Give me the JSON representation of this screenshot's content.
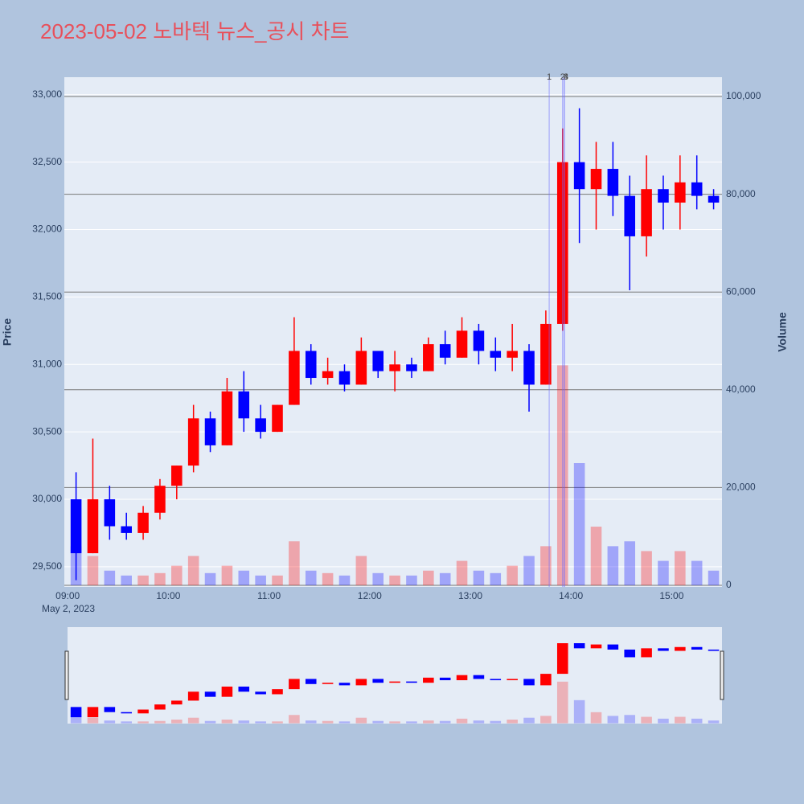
{
  "chart_data": {
    "type": "candlestick",
    "title": "2023-05-02 노바텍 뉴스_공시 차트",
    "x": [
      "09:00",
      "09:10",
      "09:20",
      "09:30",
      "09:40",
      "09:50",
      "10:00",
      "10:10",
      "10:20",
      "10:30",
      "10:40",
      "10:50",
      "11:00",
      "11:10",
      "11:20",
      "11:30",
      "11:40",
      "11:50",
      "12:00",
      "12:10",
      "12:20",
      "12:30",
      "12:40",
      "12:50",
      "13:00",
      "13:10",
      "13:20",
      "13:30",
      "13:40",
      "13:50",
      "14:00",
      "14:10",
      "14:20",
      "14:30",
      "14:40",
      "14:50",
      "15:00",
      "15:10",
      "15:20"
    ],
    "open": [
      30000,
      29600,
      30000,
      29800,
      29750,
      29900,
      30100,
      30250,
      30600,
      30400,
      30800,
      30600,
      30500,
      30700,
      31100,
      30900,
      30950,
      30850,
      31100,
      30950,
      31000,
      30950,
      31150,
      31050,
      31250,
      31100,
      31050,
      31100,
      30850,
      31300,
      32500,
      32300,
      32450,
      32250,
      31950,
      32300,
      32200,
      32350,
      32250
    ],
    "high": [
      30200,
      30450,
      30100,
      29900,
      29950,
      30150,
      30250,
      30700,
      30650,
      30900,
      30950,
      30700,
      30700,
      31350,
      31150,
      31050,
      31000,
      31200,
      31100,
      31100,
      31050,
      31200,
      31250,
      31350,
      31300,
      31200,
      31300,
      31150,
      31400,
      32750,
      32900,
      32650,
      32650,
      32400,
      32550,
      32400,
      32550,
      32550,
      32300
    ],
    "low": [
      29400,
      29600,
      29700,
      29700,
      29700,
      29850,
      30000,
      30200,
      30350,
      30400,
      30500,
      30450,
      30500,
      30700,
      30850,
      30850,
      30800,
      30850,
      30900,
      30800,
      30900,
      30950,
      31000,
      31050,
      31000,
      30950,
      30950,
      30650,
      30850,
      31250,
      31900,
      32000,
      32100,
      31550,
      31800,
      32000,
      32000,
      32150,
      32150
    ],
    "close": [
      29600,
      30000,
      29800,
      29750,
      29900,
      30100,
      30250,
      30600,
      30400,
      30800,
      30600,
      30500,
      30700,
      31100,
      30900,
      30950,
      30850,
      31100,
      30950,
      31000,
      30950,
      31150,
      31050,
      31250,
      31100,
      31050,
      31100,
      30850,
      31300,
      32500,
      32300,
      32450,
      32250,
      31950,
      32300,
      32200,
      32350,
      32250,
      32200
    ],
    "volume": [
      8000,
      6000,
      3000,
      2000,
      2000,
      2500,
      4000,
      6000,
      2500,
      4000,
      3000,
      2000,
      2000,
      9000,
      3000,
      2500,
      2000,
      6000,
      2500,
      2000,
      2000,
      3000,
      2500,
      5000,
      3000,
      2500,
      4000,
      6000,
      8000,
      45000,
      25000,
      12000,
      8000,
      9000,
      7000,
      5000,
      7000,
      5000,
      3000
    ],
    "colors": {
      "up": "#ff0000",
      "down": "#0000ff"
    },
    "xlim": [
      "08:58",
      "15:30"
    ],
    "xticks": [
      "09:00",
      "10:00",
      "11:00",
      "12:00",
      "13:00",
      "14:00",
      "15:00"
    ],
    "xsublabel": "May 2, 2023",
    "ylim": [
      29350,
      33130
    ],
    "yticks": [
      {
        "value": 29500,
        "label": "29,500"
      },
      {
        "value": 30000,
        "label": "30,000"
      },
      {
        "value": 30500,
        "label": "30,500"
      },
      {
        "value": 31000,
        "label": "31,000"
      },
      {
        "value": 31500,
        "label": "31,500"
      },
      {
        "value": 32000,
        "label": "32,000"
      },
      {
        "value": 32500,
        "label": "32,500"
      },
      {
        "value": 33000,
        "label": "33,000"
      }
    ],
    "y2lim": [
      -330,
      103950
    ],
    "y2ticks": [
      0,
      {
        "value": 20000,
        "label": "20,000"
      },
      {
        "value": 40000,
        "label": "40,000"
      },
      {
        "value": 60000,
        "label": "60,000"
      },
      {
        "value": 80000,
        "label": "80,000"
      },
      {
        "value": 100000,
        "label": "100,000"
      }
    ],
    "ylabel": "Price",
    "y2label": "Volume",
    "annotations": [
      {
        "x": "13:47",
        "label": "1"
      },
      {
        "x": "13:55",
        "label": "2"
      },
      {
        "x": "13:56",
        "label": "3"
      },
      {
        "x": "13:56",
        "label": "4"
      }
    ],
    "rangeslider": true
  }
}
